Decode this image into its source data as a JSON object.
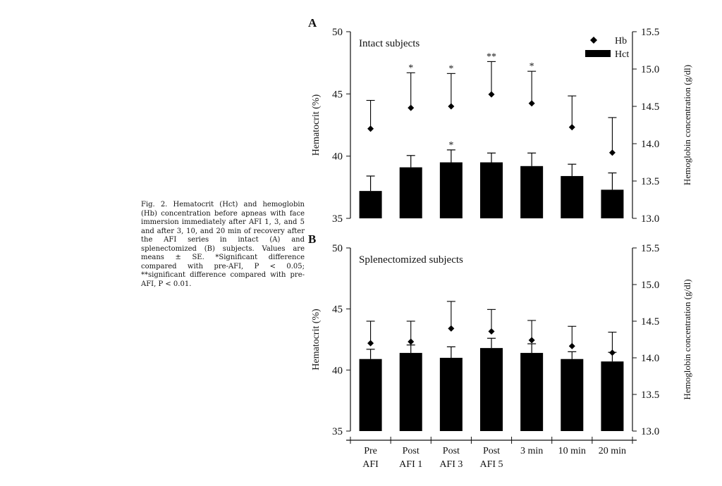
{
  "caption": {
    "prefix": "Fig. 2.",
    "text": "Hematocrit (Hct) and hemoglobin (Hb) concentration before apneas with face immersion immediately after AFI 1, 3, and 5 and after 3, 10, and 20 min of recovery after the AFI series in intact (A) and splenectomized (B) subjects. Values are means ± SE. *Significant difference compared with pre-AFI, P < 0.05; **significant difference compared with pre-AFI, P < 0.01."
  },
  "chart_data": [
    {
      "panel": "A",
      "type": "bar",
      "title": "Intact subjects",
      "categories": [
        "Pre AFI",
        "Post AFI 1",
        "Post AFI 3",
        "Post AFI 5",
        "3 min",
        "10 min",
        "20 min"
      ],
      "series": [
        {
          "name": "Hct",
          "type": "bar",
          "axis": "left",
          "values": [
            37.2,
            39.1,
            39.5,
            39.5,
            39.2,
            38.4,
            37.3
          ],
          "error": [
            1.2,
            0.95,
            1.0,
            0.75,
            1.05,
            0.95,
            1.35
          ],
          "significance": [
            "",
            "",
            "*",
            "",
            "",
            "",
            ""
          ]
        },
        {
          "name": "Hb",
          "type": "marker",
          "axis": "right",
          "values": [
            14.2,
            14.48,
            14.5,
            14.66,
            14.54,
            14.22,
            13.88
          ],
          "error": [
            0.38,
            0.47,
            0.44,
            0.44,
            0.43,
            0.42,
            0.47
          ],
          "significance": [
            "",
            "*",
            "*",
            "**",
            "*",
            "",
            ""
          ]
        }
      ],
      "ylabel": "Hematocrit (%)",
      "ylim": [
        35,
        50
      ],
      "yticks": [
        35,
        40,
        45,
        50
      ],
      "y2label": "Hemoglobin concentration (g/dl)",
      "y2lim": [
        13.0,
        15.5
      ],
      "y2ticks": [
        "13.0",
        "13.5",
        "14.0",
        "14.5",
        "15.0",
        "15.5"
      ],
      "legend_position": "top-right"
    },
    {
      "panel": "B",
      "type": "bar",
      "title": "Splenectomized subjects",
      "categories": [
        "Pre AFI",
        "Post AFI 1",
        "Post AFI 3",
        "Post AFI 5",
        "3 min",
        "10 min",
        "20 min"
      ],
      "series": [
        {
          "name": "Hct",
          "type": "bar",
          "axis": "left",
          "values": [
            40.9,
            41.4,
            41.0,
            41.8,
            41.4,
            40.9,
            40.7
          ],
          "error": [
            0.8,
            0.65,
            0.9,
            0.8,
            0.75,
            0.6,
            0.75
          ]
        },
        {
          "name": "Hb",
          "type": "marker",
          "axis": "right",
          "values": [
            14.2,
            14.22,
            14.4,
            14.36,
            14.24,
            14.16,
            14.07
          ],
          "error": [
            0.3,
            0.28,
            0.37,
            0.3,
            0.27,
            0.27,
            0.28
          ]
        }
      ],
      "ylabel": "Hematocrit (%)",
      "ylim": [
        35,
        50
      ],
      "yticks": [
        35,
        40,
        45,
        50
      ],
      "y2label": "Hemoglobin concentration (g/dl)",
      "y2lim": [
        13.0,
        15.5
      ],
      "y2ticks": [
        "13.0",
        "13.5",
        "14.0",
        "14.5",
        "15.0",
        "15.5"
      ]
    }
  ],
  "x_axis": {
    "tick_labels": [
      [
        "Pre",
        "AFI"
      ],
      [
        "Post",
        "AFI 1"
      ],
      [
        "Post",
        "AFI 3"
      ],
      [
        "Post",
        "AFI 5"
      ],
      [
        "3 min"
      ],
      [
        "10 min"
      ],
      [
        "20 min"
      ]
    ]
  }
}
